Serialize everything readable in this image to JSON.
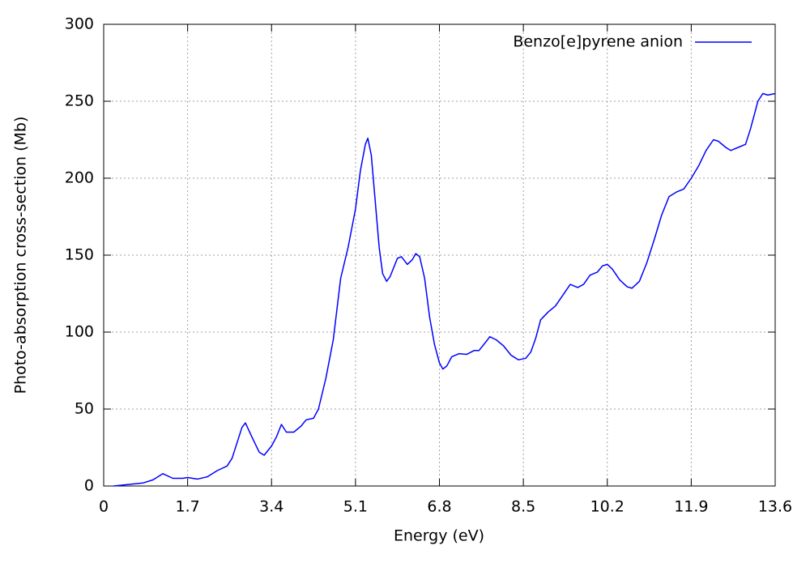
{
  "chart_data": {
    "type": "line",
    "xlabel": "Energy (eV)",
    "ylabel": "Photo-absorption cross-section (Mb)",
    "x": [
      0.2,
      0.5,
      0.8,
      1.0,
      1.2,
      1.4,
      1.6,
      1.7,
      1.9,
      2.1,
      2.3,
      2.5,
      2.6,
      2.8,
      2.87,
      3.0,
      3.15,
      3.25,
      3.4,
      3.5,
      3.6,
      3.7,
      3.85,
      4.0,
      4.1,
      4.25,
      4.35,
      4.5,
      4.65,
      4.8,
      4.95,
      5.1,
      5.2,
      5.3,
      5.35,
      5.42,
      5.5,
      5.58,
      5.65,
      5.73,
      5.8,
      5.95,
      6.03,
      6.15,
      6.25,
      6.32,
      6.4,
      6.5,
      6.6,
      6.7,
      6.8,
      6.87,
      6.95,
      7.05,
      7.2,
      7.35,
      7.5,
      7.6,
      7.75,
      7.82,
      7.95,
      8.1,
      8.25,
      8.4,
      8.55,
      8.65,
      8.75,
      8.85,
      9.0,
      9.15,
      9.3,
      9.45,
      9.6,
      9.72,
      9.85,
      10.0,
      10.1,
      10.2,
      10.3,
      10.45,
      10.6,
      10.7,
      10.85,
      11.0,
      11.15,
      11.3,
      11.45,
      11.6,
      11.75,
      11.9,
      12.05,
      12.2,
      12.35,
      12.45,
      12.6,
      12.7,
      12.85,
      13.0,
      13.1,
      13.25,
      13.35,
      13.45,
      13.6
    ],
    "series": [
      {
        "name": "Benzo[e]pyrene anion",
        "color": "#0000ff",
        "values": [
          0,
          1,
          2,
          4,
          8,
          5,
          5,
          5.5,
          4.5,
          6,
          10,
          13,
          18,
          38,
          41,
          32,
          22,
          20,
          26,
          32,
          40,
          35,
          35,
          39,
          43,
          44,
          50,
          70,
          95,
          135,
          155,
          180,
          205,
          222,
          226,
          215,
          185,
          155,
          138,
          133,
          136,
          148,
          149,
          144,
          147,
          151,
          149,
          135,
          110,
          92,
          80,
          76,
          78,
          84,
          86,
          85.5,
          88,
          88,
          94,
          97,
          95,
          91,
          85,
          82,
          83,
          87,
          96,
          108,
          113,
          117,
          124,
          131,
          129,
          131,
          137,
          139,
          143,
          144,
          141,
          134,
          129.5,
          128.5,
          133,
          145,
          160,
          176,
          188,
          191,
          193,
          200,
          208,
          218,
          225,
          224,
          220,
          218,
          220,
          222,
          232,
          250,
          255,
          254,
          255
        ]
      }
    ],
    "xlim": [
      0,
      13.6
    ],
    "xticks": [
      0,
      1.7,
      3.4,
      5.1,
      6.8,
      8.5,
      10.2,
      11.9,
      13.6
    ],
    "ylim": [
      0,
      300
    ],
    "yticks": [
      0,
      50,
      100,
      150,
      200,
      250,
      300
    ],
    "grid": true,
    "legend": "upper right"
  }
}
